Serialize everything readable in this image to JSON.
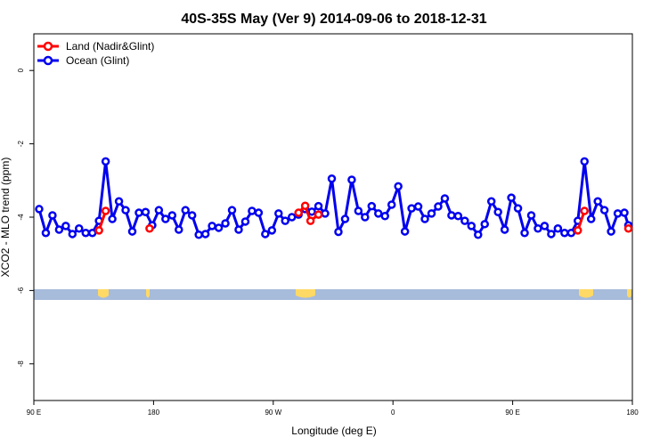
{
  "chart_data": {
    "type": "line",
    "title": "40S-35S May (Ver 9)   2014-09-06 to 2018-12-31",
    "x_label": "Longitude (deg E)",
    "y_label": "XCO2 - MLO trend (ppm)",
    "xlim": [
      90,
      540
    ],
    "ylim": [
      -9,
      1
    ],
    "xticks": [
      {
        "value": 90,
        "label": "90 E"
      },
      {
        "value": 180,
        "label": "180"
      },
      {
        "value": 270,
        "label": "90 W"
      },
      {
        "value": 360,
        "label": "0"
      },
      {
        "value": 450,
        "label": "90 E"
      },
      {
        "value": 540,
        "label": "180"
      }
    ],
    "yticks": [
      0,
      -2,
      -4,
      -6,
      -8
    ],
    "legend": "top-left",
    "series": [
      {
        "name": "Land (Nadir&Glint)",
        "color": "#ff0000",
        "x": [
          139,
          144,
          null,
          177,
          null,
          289,
          294,
          298,
          304,
          null,
          499,
          504,
          null,
          537
        ],
        "values": [
          -4.36,
          -3.83,
          null,
          -4.31,
          null,
          -3.88,
          -3.69,
          -4.1,
          -3.93,
          null,
          -4.36,
          -3.83,
          null,
          -4.31
        ]
      },
      {
        "name": "Ocean (Glint)",
        "color": "#0000ee",
        "x": [
          94,
          99,
          104,
          109,
          114,
          119,
          124,
          129,
          134,
          139,
          144,
          149,
          154,
          159,
          164,
          169,
          174,
          179,
          184,
          189,
          194,
          199,
          204,
          209,
          214,
          219,
          224,
          229,
          234,
          239,
          244,
          249,
          254,
          259,
          264,
          269,
          274,
          279,
          284,
          289,
          294,
          299,
          304,
          309,
          314,
          319,
          324,
          329,
          334,
          339,
          344,
          349,
          354,
          359,
          364,
          369,
          374,
          379,
          384,
          389,
          394,
          399,
          404,
          409,
          414,
          419,
          424,
          429,
          434,
          439,
          444,
          449,
          454,
          459,
          464,
          469,
          474,
          479,
          484,
          489,
          494,
          499,
          504,
          509,
          514,
          519,
          524,
          529,
          534,
          537
        ],
        "values": [
          -3.78,
          -4.43,
          -3.95,
          -4.34,
          -4.24,
          -4.46,
          -4.31,
          -4.43,
          -4.43,
          -4.1,
          -2.48,
          -4.05,
          -3.57,
          -3.81,
          -4.39,
          -3.88,
          -3.86,
          -4.22,
          -3.81,
          -4.05,
          -3.95,
          -4.34,
          -3.81,
          -3.95,
          -4.48,
          -4.46,
          -4.24,
          -4.29,
          -4.17,
          -3.81,
          -4.34,
          -4.12,
          -3.83,
          -3.88,
          -4.46,
          -4.36,
          -3.9,
          -4.1,
          -4.0,
          -3.93,
          -3.78,
          -3.85,
          -3.7,
          -3.9,
          -2.95,
          -4.4,
          -4.05,
          -2.98,
          -3.83,
          -4.0,
          -3.7,
          -3.9,
          -3.97,
          -3.66,
          -3.16,
          -4.39,
          -3.76,
          -3.71,
          -4.05,
          -3.9,
          -3.71,
          -3.49,
          -3.95,
          -3.97,
          -4.1,
          -4.24,
          -4.48,
          -4.19,
          -3.57,
          -3.86,
          -4.34,
          -3.47,
          -3.76,
          -4.43,
          -3.95,
          -4.31,
          -4.24,
          -4.46,
          -4.31,
          -4.43,
          -4.43,
          -4.1,
          -2.48,
          -4.05,
          -3.57,
          -3.81,
          -4.39,
          -3.9,
          -3.88,
          -4.22
        ]
      }
    ]
  }
}
